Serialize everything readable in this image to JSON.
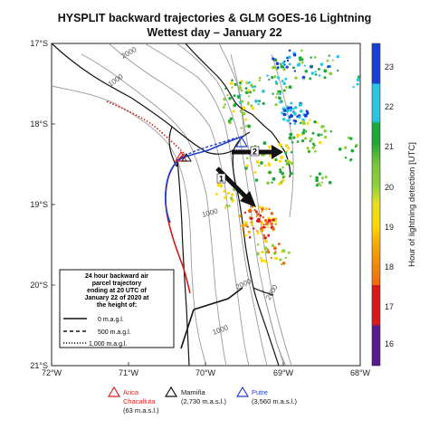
{
  "title": {
    "line1": "HYSPLIT backward trajectories   &   GLM GOES-16 Lightning",
    "line2": "Wettest day – January 22"
  },
  "axes": {
    "lon_ticks": [
      "72°W",
      "71°W",
      "70°W",
      "69°W",
      "68°W"
    ],
    "lat_ticks": [
      "17°S",
      "18°S",
      "19°S",
      "20°S",
      "21°S"
    ],
    "lon_range": [
      -72,
      -68
    ],
    "lat_range": [
      -21,
      -17
    ]
  },
  "colorbar": {
    "label": "Hour of lightning detection [UTC]",
    "ticks": [
      "16",
      "17",
      "18",
      "19",
      "20",
      "21",
      "22",
      "23"
    ],
    "colors": [
      "#5b1a8a",
      "#d7191c",
      "#ee6a12",
      "#ffd700",
      "#8ccf3a",
      "#1fa83a",
      "#29c4e6",
      "#1a3fd6"
    ]
  },
  "contours": {
    "labels": [
      "2000",
      "1000",
      "1000",
      "2000",
      "1000",
      "2000"
    ]
  },
  "legend": {
    "title_lines": [
      "24 hour backward air",
      "parcel trajectory",
      "ending at 20 UTC of",
      "January 22 of 2020 at",
      "the height of:"
    ],
    "items": [
      {
        "style": "solid",
        "label": "0 m.a.g.l."
      },
      {
        "style": "dashed",
        "label": "500 m.a.g.l."
      },
      {
        "style": "dotted",
        "label": "1,000 m.a.g.l."
      }
    ]
  },
  "arrows": {
    "labels": [
      "1",
      "2"
    ]
  },
  "stations": [
    {
      "name": "Arica\nChacalluta",
      "elev": "(63 m.a.s.l.)",
      "color": "#e02020",
      "marker": "triangle-icon"
    },
    {
      "name": "Mamiña",
      "elev": "(2,730 m.a.s.l.)",
      "color": "#111111",
      "marker": "triangle-icon"
    },
    {
      "name": "Putre",
      "elev": "(3,560 m.a.s.l.)",
      "color": "#2040d0",
      "marker": "triangle-icon"
    }
  ],
  "stations_display": {
    "arica_name": "Arica",
    "arica_name2": "Chacalluta",
    "arica_elev": "(63 m.a.s.l.)",
    "mamina_name": "Mamiña",
    "mamina_elev": "(2,730 m.a.s.l.)",
    "putre_name": "Putre",
    "putre_elev": "(3,560 m.a.s.l.)"
  }
}
